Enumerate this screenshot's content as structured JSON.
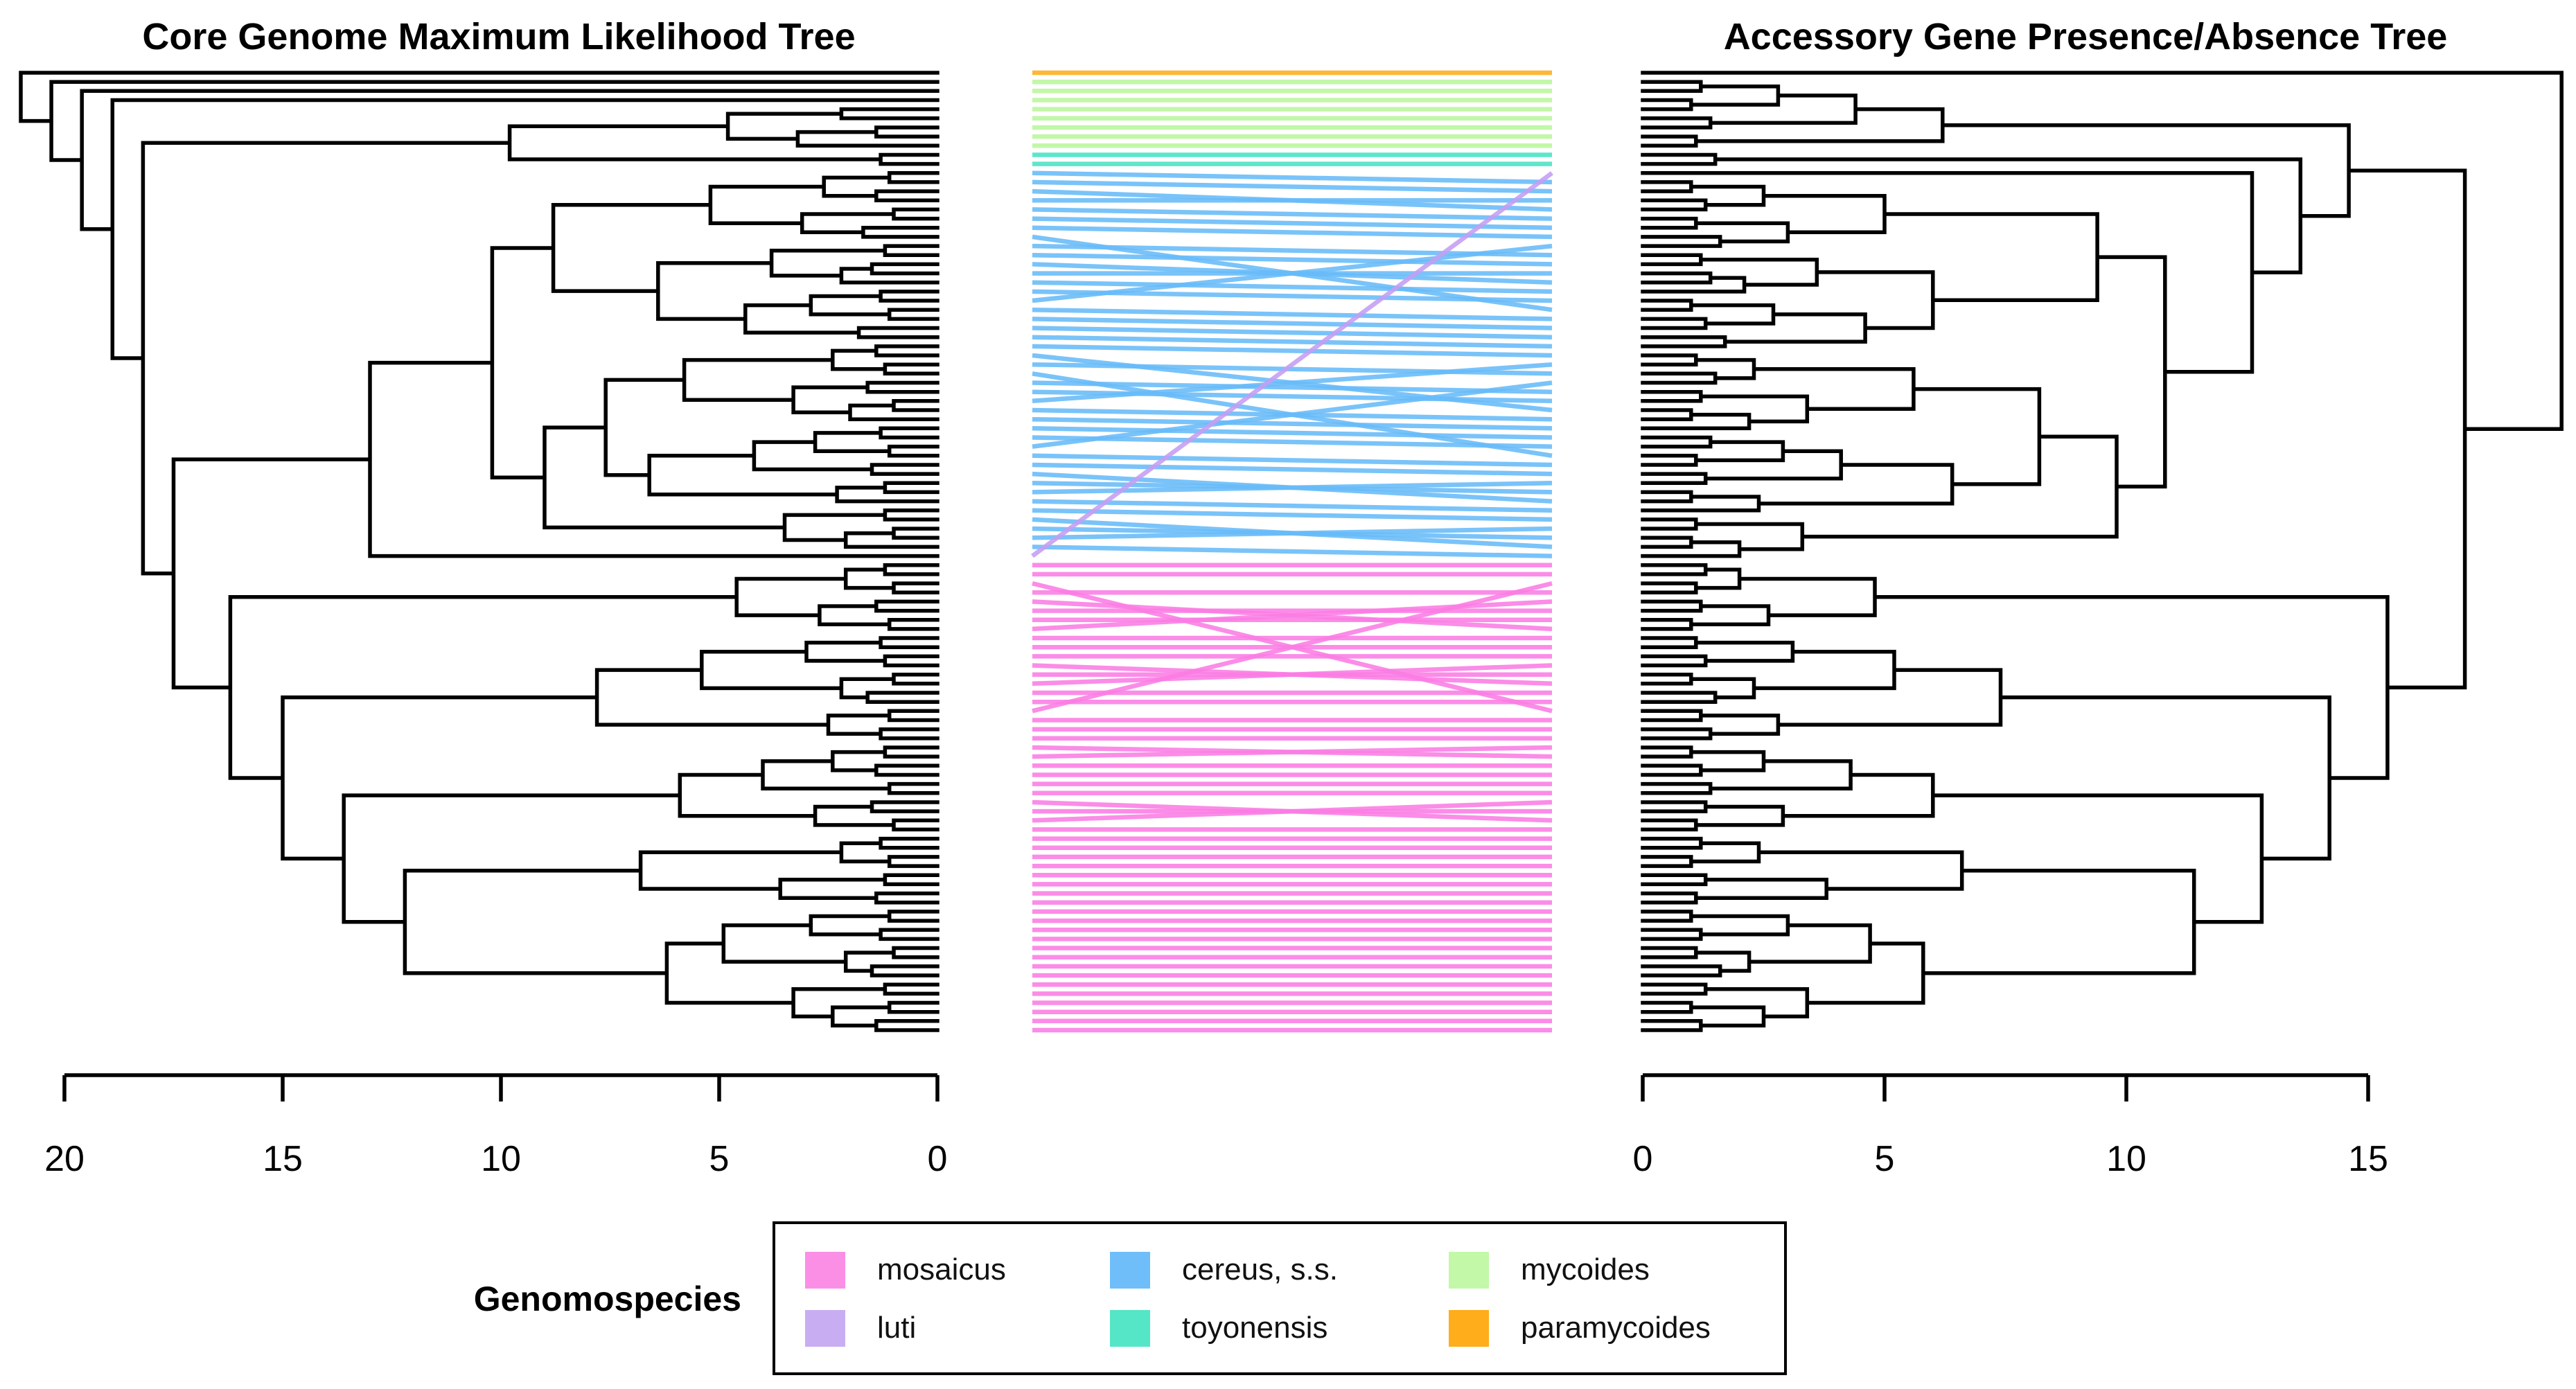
{
  "chart_data": {
    "type": "tanglegram",
    "description": "Cophylogeny (tanglegram) comparing core genome ML tree and accessory gene presence/absence tree; 106 taxa connected by lines colored by genomospecies.",
    "left_tree": {
      "title": "Core Genome Maximum Likelihood Tree",
      "axis_ticks": [
        20,
        15,
        10,
        5,
        0
      ],
      "axis_direction": "tips-at-zero-right",
      "n_tips": 106,
      "root_height": 21.0,
      "adjacent_join_heights": [
        21.0,
        20.3,
        19.6,
        18.9,
        2.2,
        4.8,
        1.4,
        3.2,
        9.8,
        1.3,
        18.2,
        1.1,
        2.6,
        1.4,
        5.2,
        1.0,
        3.1,
        1.7,
        8.8,
        1.2,
        3.8,
        1.5,
        2.2,
        6.4,
        1.3,
        2.9,
        1.1,
        4.4,
        1.8,
        10.2,
        1.4,
        2.4,
        1.2,
        5.8,
        1.6,
        3.3,
        1.0,
        2.0,
        7.6,
        1.3,
        2.8,
        1.1,
        4.2,
        1.5,
        6.6,
        1.2,
        2.3,
        9.0,
        1.2,
        3.5,
        1.0,
        2.1,
        13.0,
        17.5,
        1.2,
        2.1,
        1.0,
        4.6,
        1.4,
        2.7,
        1.1,
        16.2,
        1.3,
        3.0,
        1.2,
        5.4,
        1.0,
        2.2,
        1.6,
        7.8,
        1.1,
        2.5,
        1.3,
        15.0,
        1.2,
        2.4,
        1.4,
        4.0,
        1.1,
        5.9,
        1.5,
        2.8,
        1.0,
        13.6,
        1.3,
        2.2,
        1.1,
        6.8,
        1.2,
        3.6,
        1.4,
        12.2,
        1.1,
        2.9,
        1.3,
        4.9,
        1.0,
        2.1,
        1.5,
        6.2,
        1.2,
        3.3,
        1.1,
        2.4,
        1.4
      ]
    },
    "right_tree": {
      "title": "Accessory Gene Presence/Absence Tree",
      "axis_ticks": [
        0,
        5,
        10,
        15
      ],
      "axis_direction": "tips-at-zero-left",
      "n_tips": 106,
      "root_height": 19.0,
      "adjacent_join_heights": [
        19.0,
        1.2,
        2.8,
        1.0,
        4.4,
        1.4,
        6.2,
        1.1,
        14.6,
        1.5,
        13.6,
        12.6,
        1.0,
        2.5,
        1.3,
        5.0,
        1.1,
        3.0,
        1.6,
        9.4,
        1.2,
        3.6,
        1.4,
        2.1,
        6.0,
        1.0,
        2.7,
        1.3,
        4.6,
        1.7,
        10.8,
        1.1,
        2.3,
        1.5,
        5.6,
        1.2,
        3.4,
        1.0,
        2.2,
        8.2,
        1.4,
        2.9,
        1.1,
        4.1,
        1.3,
        6.4,
        1.0,
        2.4,
        9.8,
        1.1,
        3.3,
        1.0,
        2.0,
        17.0,
        1.3,
        2.0,
        1.1,
        4.8,
        1.2,
        2.6,
        1.0,
        15.4,
        1.1,
        3.1,
        1.3,
        5.2,
        1.0,
        2.3,
        1.5,
        7.4,
        1.2,
        2.8,
        1.4,
        14.2,
        1.0,
        2.5,
        1.2,
        4.3,
        1.4,
        6.0,
        1.3,
        2.9,
        1.1,
        12.8,
        1.2,
        2.4,
        1.0,
        6.6,
        1.3,
        3.8,
        1.1,
        11.4,
        1.0,
        3.0,
        1.2,
        4.7,
        1.1,
        2.2,
        1.6,
        5.8,
        1.3,
        3.4,
        1.0,
        2.5,
        1.2
      ]
    },
    "species": [
      {
        "label": "mosaicus",
        "color": "#FB7CE4"
      },
      {
        "label": "luti",
        "color": "#C49DF2"
      },
      {
        "label": "cereus, s.s.",
        "color": "#66BBF8"
      },
      {
        "label": "toyonensis",
        "color": "#48E3C3"
      },
      {
        "label": "mycoides",
        "color": "#B9F69C"
      },
      {
        "label": "paramycoides",
        "color": "#FFAD1A"
      }
    ],
    "links": [
      [
        0,
        0,
        5
      ],
      [
        1,
        1,
        4
      ],
      [
        2,
        2,
        4
      ],
      [
        3,
        3,
        4
      ],
      [
        4,
        4,
        4
      ],
      [
        5,
        5,
        4
      ],
      [
        6,
        6,
        4
      ],
      [
        7,
        7,
        4
      ],
      [
        8,
        8,
        4
      ],
      [
        9,
        9,
        3
      ],
      [
        10,
        10,
        3
      ],
      [
        11,
        12,
        2
      ],
      [
        12,
        13,
        2
      ],
      [
        13,
        15,
        2
      ],
      [
        14,
        14,
        2
      ],
      [
        15,
        16,
        2
      ],
      [
        16,
        17,
        2
      ],
      [
        17,
        18,
        2
      ],
      [
        18,
        26,
        2
      ],
      [
        19,
        20,
        2
      ],
      [
        20,
        21,
        2
      ],
      [
        21,
        23,
        2
      ],
      [
        22,
        22,
        2
      ],
      [
        23,
        24,
        2
      ],
      [
        24,
        25,
        2
      ],
      [
        25,
        19,
        2
      ],
      [
        26,
        27,
        2
      ],
      [
        27,
        28,
        2
      ],
      [
        28,
        29,
        2
      ],
      [
        29,
        30,
        2
      ],
      [
        30,
        31,
        2
      ],
      [
        31,
        37,
        2
      ],
      [
        32,
        33,
        2
      ],
      [
        33,
        42,
        2
      ],
      [
        34,
        35,
        2
      ],
      [
        35,
        36,
        2
      ],
      [
        36,
        32,
        2
      ],
      [
        37,
        38,
        2
      ],
      [
        38,
        39,
        2
      ],
      [
        39,
        40,
        2
      ],
      [
        40,
        41,
        2
      ],
      [
        41,
        34,
        2
      ],
      [
        42,
        43,
        2
      ],
      [
        43,
        44,
        2
      ],
      [
        44,
        47,
        2
      ],
      [
        45,
        46,
        2
      ],
      [
        46,
        45,
        2
      ],
      [
        47,
        48,
        2
      ],
      [
        48,
        49,
        2
      ],
      [
        49,
        52,
        2
      ],
      [
        50,
        51,
        2
      ],
      [
        51,
        50,
        2
      ],
      [
        52,
        53,
        2
      ],
      [
        53,
        11,
        1
      ],
      [
        54,
        54,
        0
      ],
      [
        55,
        55,
        0
      ],
      [
        56,
        70,
        0
      ],
      [
        57,
        57,
        0
      ],
      [
        58,
        61,
        0
      ],
      [
        59,
        59,
        0
      ],
      [
        60,
        60,
        0
      ],
      [
        61,
        58,
        0
      ],
      [
        62,
        62,
        0
      ],
      [
        63,
        63,
        0
      ],
      [
        64,
        64,
        0
      ],
      [
        65,
        67,
        0
      ],
      [
        66,
        66,
        0
      ],
      [
        67,
        65,
        0
      ],
      [
        68,
        68,
        0
      ],
      [
        69,
        69,
        0
      ],
      [
        70,
        56,
        0
      ],
      [
        71,
        71,
        0
      ],
      [
        72,
        72,
        0
      ],
      [
        73,
        73,
        0
      ],
      [
        74,
        75,
        0
      ],
      [
        75,
        74,
        0
      ],
      [
        76,
        76,
        0
      ],
      [
        77,
        77,
        0
      ],
      [
        78,
        78,
        0
      ],
      [
        79,
        79,
        0
      ],
      [
        80,
        82,
        0
      ],
      [
        81,
        81,
        0
      ],
      [
        82,
        80,
        0
      ],
      [
        83,
        83,
        0
      ],
      [
        84,
        84,
        0
      ],
      [
        85,
        85,
        0
      ],
      [
        86,
        86,
        0
      ],
      [
        87,
        87,
        0
      ],
      [
        88,
        88,
        0
      ],
      [
        89,
        89,
        0
      ],
      [
        90,
        90,
        0
      ],
      [
        91,
        91,
        0
      ],
      [
        92,
        92,
        0
      ],
      [
        93,
        93,
        0
      ],
      [
        94,
        94,
        0
      ],
      [
        95,
        95,
        0
      ],
      [
        96,
        96,
        0
      ],
      [
        97,
        97,
        0
      ],
      [
        98,
        98,
        0
      ],
      [
        99,
        99,
        0
      ],
      [
        100,
        100,
        0
      ],
      [
        101,
        101,
        0
      ],
      [
        102,
        102,
        0
      ],
      [
        103,
        103,
        0
      ],
      [
        104,
        104,
        0
      ],
      [
        105,
        105,
        0
      ]
    ],
    "tree_color": "#000000",
    "legend_position": "bottom-center",
    "grid": false
  },
  "legend": {
    "title": "Genomospecies",
    "items": [
      {
        "label": "mosaicus",
        "color": "#FB8FE6"
      },
      {
        "label": "luti",
        "color": "#C9ADF2"
      },
      {
        "label": "cereus, s.s.",
        "color": "#6FBEFA"
      },
      {
        "label": "toyonensis",
        "color": "#55E6C7"
      },
      {
        "label": "mycoides",
        "color": "#C3F8A8"
      },
      {
        "label": "paramycoides",
        "color": "#FFAD1A"
      }
    ]
  }
}
